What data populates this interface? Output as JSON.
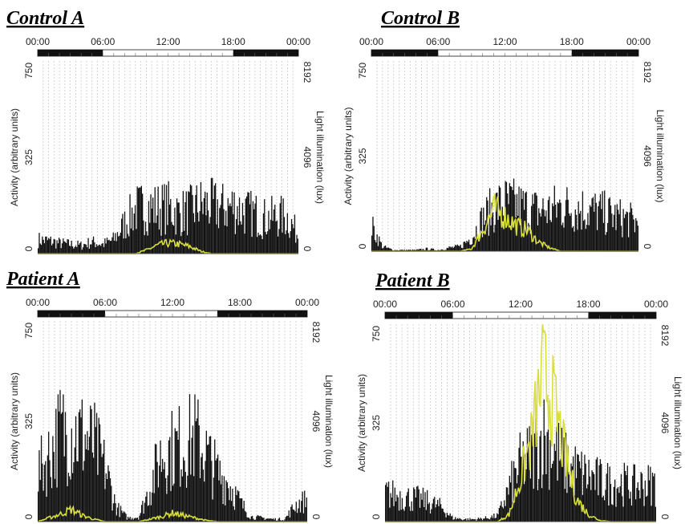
{
  "colors": {
    "activity": "#111111",
    "light": "#d9df3a",
    "grid": "#c9c9c9",
    "dark_bar": "#111111"
  },
  "chart_data": [
    {
      "title": "Control A",
      "type": "area",
      "x_ticks": [
        "00:00",
        "06:00",
        "12:00",
        "18:00",
        "00:00"
      ],
      "ylabel_left": "Activity (arbitrary units)",
      "ylim_left": [
        0,
        750
      ],
      "y_ticks_left": [
        "0",
        "325",
        "750"
      ],
      "ylabel_right": "Light illumination (lux)",
      "ylim_right": [
        0,
        8192
      ],
      "y_ticks_right": [
        "0",
        "4096",
        "8192"
      ],
      "dark_periods_hours": [
        [
          0,
          6
        ],
        [
          18,
          24
        ]
      ],
      "series": [
        {
          "name": "activity",
          "x_hours": [
            0,
            1,
            2,
            3,
            4,
            5,
            6,
            7,
            8,
            9,
            10,
            11,
            12,
            13,
            14,
            15,
            16,
            17,
            18,
            19,
            20,
            21,
            22,
            23,
            24
          ],
          "values": [
            60,
            55,
            45,
            40,
            35,
            50,
            40,
            60,
            130,
            190,
            200,
            195,
            200,
            175,
            185,
            210,
            205,
            195,
            205,
            180,
            170,
            150,
            160,
            155,
            80
          ]
        },
        {
          "name": "light",
          "x_hours": [
            0,
            1,
            2,
            3,
            4,
            5,
            6,
            7,
            8,
            9,
            10,
            11,
            12,
            13,
            14,
            15,
            16,
            17,
            18,
            19,
            20,
            21,
            22,
            23,
            24
          ],
          "values": [
            0,
            0,
            0,
            0,
            0,
            0,
            0,
            0,
            0,
            0,
            150,
            350,
            450,
            400,
            300,
            100,
            0,
            0,
            0,
            0,
            0,
            0,
            0,
            0,
            0
          ]
        }
      ]
    },
    {
      "title": "Control B",
      "type": "area",
      "x_ticks": [
        "00:00",
        "06:00",
        "12:00",
        "18:00",
        "00:00"
      ],
      "ylabel_left": "Activity (arbitrary units)",
      "ylim_left": [
        0,
        750
      ],
      "y_ticks_left": [
        "0",
        "325",
        "750"
      ],
      "ylabel_right": "Light illumination (lux)",
      "ylim_right": [
        0,
        8192
      ],
      "y_ticks_right": [
        "0",
        "4096",
        "8192"
      ],
      "dark_periods_hours": [
        [
          0,
          6
        ],
        [
          18,
          24
        ]
      ],
      "series": [
        {
          "name": "activity",
          "x_hours": [
            0,
            1,
            2,
            3,
            4,
            5,
            6,
            7,
            8,
            9,
            10,
            11,
            12,
            13,
            14,
            15,
            16,
            17,
            18,
            19,
            20,
            21,
            22,
            23,
            24
          ],
          "values": [
            110,
            20,
            5,
            5,
            5,
            10,
            5,
            15,
            20,
            60,
            140,
            190,
            210,
            200,
            185,
            175,
            180,
            195,
            190,
            185,
            175,
            165,
            150,
            140,
            120
          ]
        },
        {
          "name": "light",
          "x_hours": [
            0,
            1,
            2,
            3,
            4,
            5,
            6,
            7,
            8,
            9,
            10,
            11,
            12,
            13,
            14,
            15,
            16,
            17,
            18,
            19,
            20,
            21,
            22,
            23,
            24
          ],
          "values": [
            0,
            0,
            0,
            0,
            0,
            0,
            0,
            0,
            0,
            100,
            900,
            1800,
            1500,
            1100,
            900,
            400,
            150,
            0,
            0,
            0,
            0,
            0,
            0,
            0,
            0
          ]
        }
      ]
    },
    {
      "title": "Patient A",
      "type": "area",
      "x_ticks": [
        "00:00",
        "06:00",
        "12:00",
        "18:00",
        "00:00"
      ],
      "ylabel_left": "Activity (arbitrary units)",
      "ylim_left": [
        0,
        750
      ],
      "y_ticks_left": [
        "0",
        "325",
        "750"
      ],
      "ylabel_right": "Light illumination (lux)",
      "ylim_right": [
        0,
        8192
      ],
      "y_ticks_right": [
        "0",
        "4096",
        "8192"
      ],
      "dark_periods_hours": [
        [
          0,
          6
        ],
        [
          16,
          24
        ]
      ],
      "series": [
        {
          "name": "activity",
          "x_hours": [
            0,
            1,
            2,
            3,
            4,
            5,
            6,
            7,
            8,
            9,
            10,
            11,
            12,
            13,
            14,
            15,
            16,
            17,
            18,
            19,
            20,
            21,
            22,
            23,
            24
          ],
          "values": [
            200,
            270,
            370,
            380,
            350,
            320,
            220,
            60,
            15,
            20,
            140,
            280,
            300,
            320,
            350,
            280,
            200,
            160,
            80,
            20,
            15,
            10,
            10,
            70,
            90
          ]
        },
        {
          "name": "light",
          "x_hours": [
            0,
            1,
            2,
            3,
            4,
            5,
            6,
            7,
            8,
            9,
            10,
            11,
            12,
            13,
            14,
            15,
            16,
            17,
            18,
            19,
            20,
            21,
            22,
            23,
            24
          ],
          "values": [
            0,
            150,
            300,
            500,
            250,
            100,
            0,
            0,
            0,
            0,
            100,
            200,
            350,
            250,
            150,
            50,
            0,
            0,
            0,
            0,
            0,
            0,
            0,
            0,
            0
          ]
        }
      ]
    },
    {
      "title": "Patient B",
      "type": "area",
      "x_ticks": [
        "00:00",
        "06:00",
        "12:00",
        "18:00",
        "00:00"
      ],
      "ylabel_left": "Activity (arbitrary units)",
      "ylim_left": [
        0,
        750
      ],
      "y_ticks_left": [
        "0",
        "325",
        "750"
      ],
      "ylabel_right": "Light illumination (lux)",
      "ylim_right": [
        0,
        8192
      ],
      "y_ticks_right": [
        "0",
        "4096",
        "8192"
      ],
      "dark_periods_hours": [
        [
          0,
          6
        ],
        [
          18,
          24
        ]
      ],
      "series": [
        {
          "name": "activity",
          "x_hours": [
            0,
            1,
            2,
            3,
            4,
            5,
            6,
            7,
            8,
            9,
            10,
            11,
            12,
            13,
            14,
            15,
            16,
            17,
            18,
            19,
            20,
            21,
            22,
            23,
            24
          ],
          "values": [
            120,
            110,
            100,
            95,
            80,
            60,
            15,
            10,
            10,
            15,
            25,
            140,
            240,
            280,
            360,
            300,
            240,
            210,
            190,
            170,
            160,
            160,
            150,
            155,
            160
          ]
        },
        {
          "name": "light",
          "x_hours": [
            0,
            1,
            2,
            3,
            4,
            5,
            6,
            7,
            8,
            9,
            10,
            11,
            12,
            13,
            14,
            15,
            16,
            17,
            18,
            19,
            20,
            21,
            22,
            23,
            24
          ],
          "values": [
            0,
            0,
            0,
            0,
            0,
            0,
            0,
            0,
            0,
            0,
            0,
            300,
            1800,
            3500,
            6200,
            4800,
            2600,
            900,
            300,
            50,
            0,
            0,
            0,
            0,
            0
          ]
        }
      ]
    }
  ]
}
